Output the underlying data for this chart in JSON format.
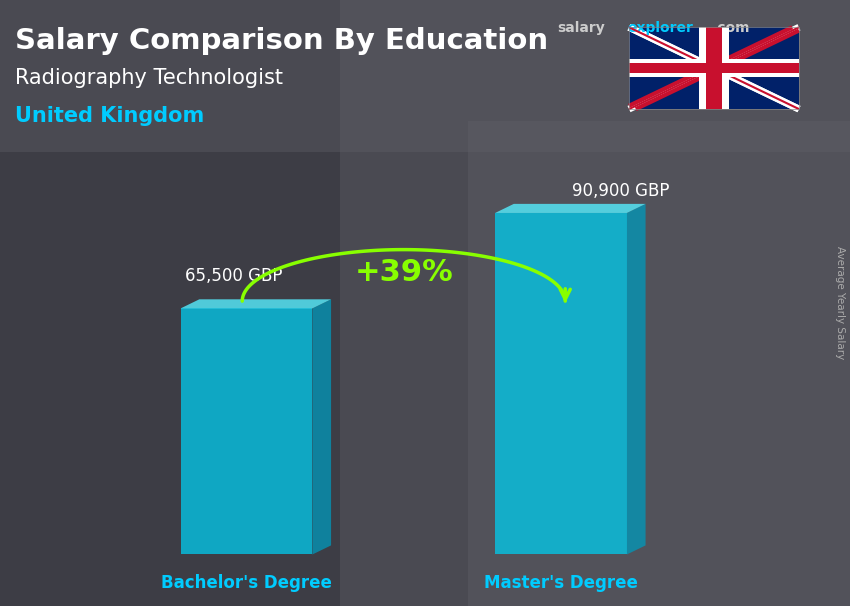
{
  "title_main": "Salary Comparison By Education",
  "subtitle": "Radiography Technologist",
  "location": "United Kingdom",
  "categories": [
    "Bachelor's Degree",
    "Master's Degree"
  ],
  "values": [
    65500,
    90900
  ],
  "labels": [
    "65,500 GBP",
    "90,900 GBP"
  ],
  "percent_increase": "+39%",
  "bar_color_front": "#00ccee",
  "bar_color_top": "#55eeff",
  "bar_color_side": "#0099bb",
  "bg_color": "#4a4a52",
  "title_color": "#ffffff",
  "subtitle_color": "#ffffff",
  "location_color": "#00ccff",
  "label_color": "#ffffff",
  "category_color": "#00ccff",
  "percent_color": "#88ff00",
  "ylabel_text": "Average Yearly Salary",
  "salary_color": "#cccccc",
  "explorer_color": "#00ccff",
  "bar_alpha": 0.75
}
